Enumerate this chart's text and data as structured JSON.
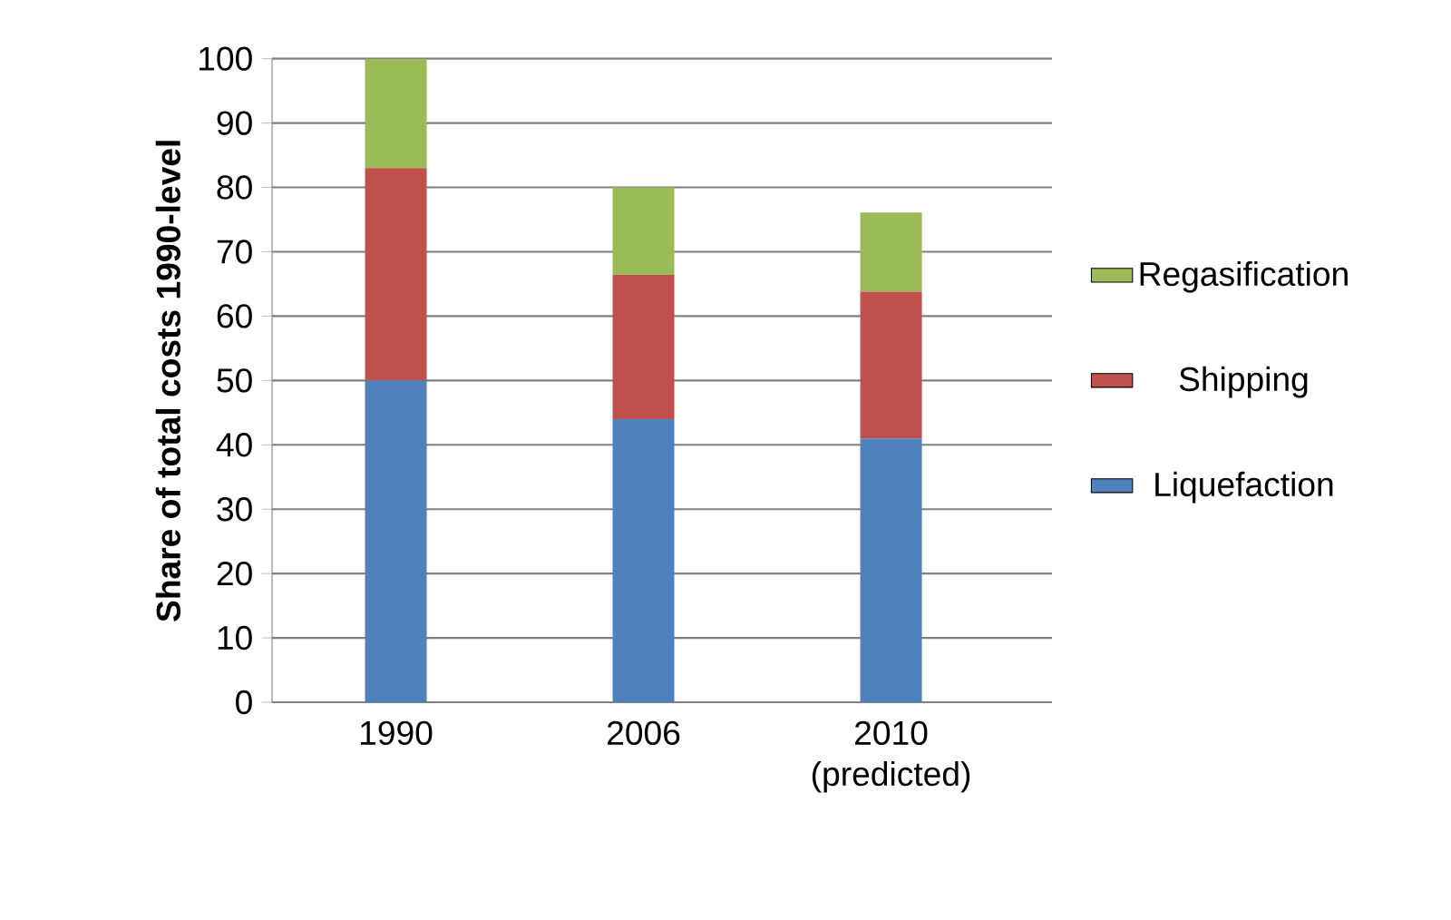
{
  "chart_data": {
    "type": "bar",
    "stacked": true,
    "ylabel": "Share of total costs 1990-level",
    "categories": [
      "1990",
      "2006",
      "2010 (predicted)"
    ],
    "series": [
      {
        "name": "Liquefaction",
        "color": "#4f81bd",
        "values": [
          50,
          44,
          41
        ]
      },
      {
        "name": "Shipping",
        "color": "#c0504d",
        "values": [
          33,
          22.4,
          22.8
        ]
      },
      {
        "name": "Regasification",
        "color": "#9bbb59",
        "values": [
          17,
          13.6,
          12.3
        ]
      }
    ],
    "ylim": [
      0,
      100
    ],
    "yticks": [
      0,
      10,
      20,
      30,
      40,
      50,
      60,
      70,
      80,
      90,
      100
    ],
    "grid": "y",
    "legend": "right"
  }
}
